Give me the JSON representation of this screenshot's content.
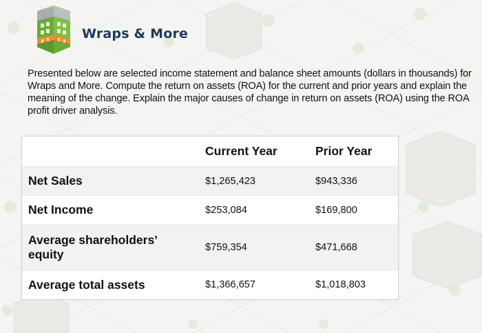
{
  "header": {
    "title": "Wraps & More"
  },
  "intro": {
    "text": "Presented below are selected income statement and balance sheet amounts (dollars in thousands) for Wraps and More. Compute the return on assets (ROA) for the current and prior years and explain the meaning of the change. Explain the major causes of change in return on assets (ROA) using the ROA profit driver analysis."
  },
  "table": {
    "headers": [
      "",
      "Current Year",
      "Prior Year"
    ],
    "rows": [
      {
        "label": "Net Sales",
        "current": "$1,265,423",
        "prior": "$943,336"
      },
      {
        "label": "Net Income",
        "current": "$253,084",
        "prior": "$169,800"
      },
      {
        "label": "Average shareholders’ equity",
        "current": "$759,354",
        "prior": "$471,668"
      },
      {
        "label": "Average total assets",
        "current": "$1,366,657",
        "prior": "$1,018,803"
      }
    ]
  },
  "icons": {
    "logo": "building-icon"
  },
  "colors": {
    "title": "#1b3a5a",
    "building_green": "#7dc042",
    "building_gray": "#b7bdc3",
    "awning_orange": "#f28a2e"
  }
}
